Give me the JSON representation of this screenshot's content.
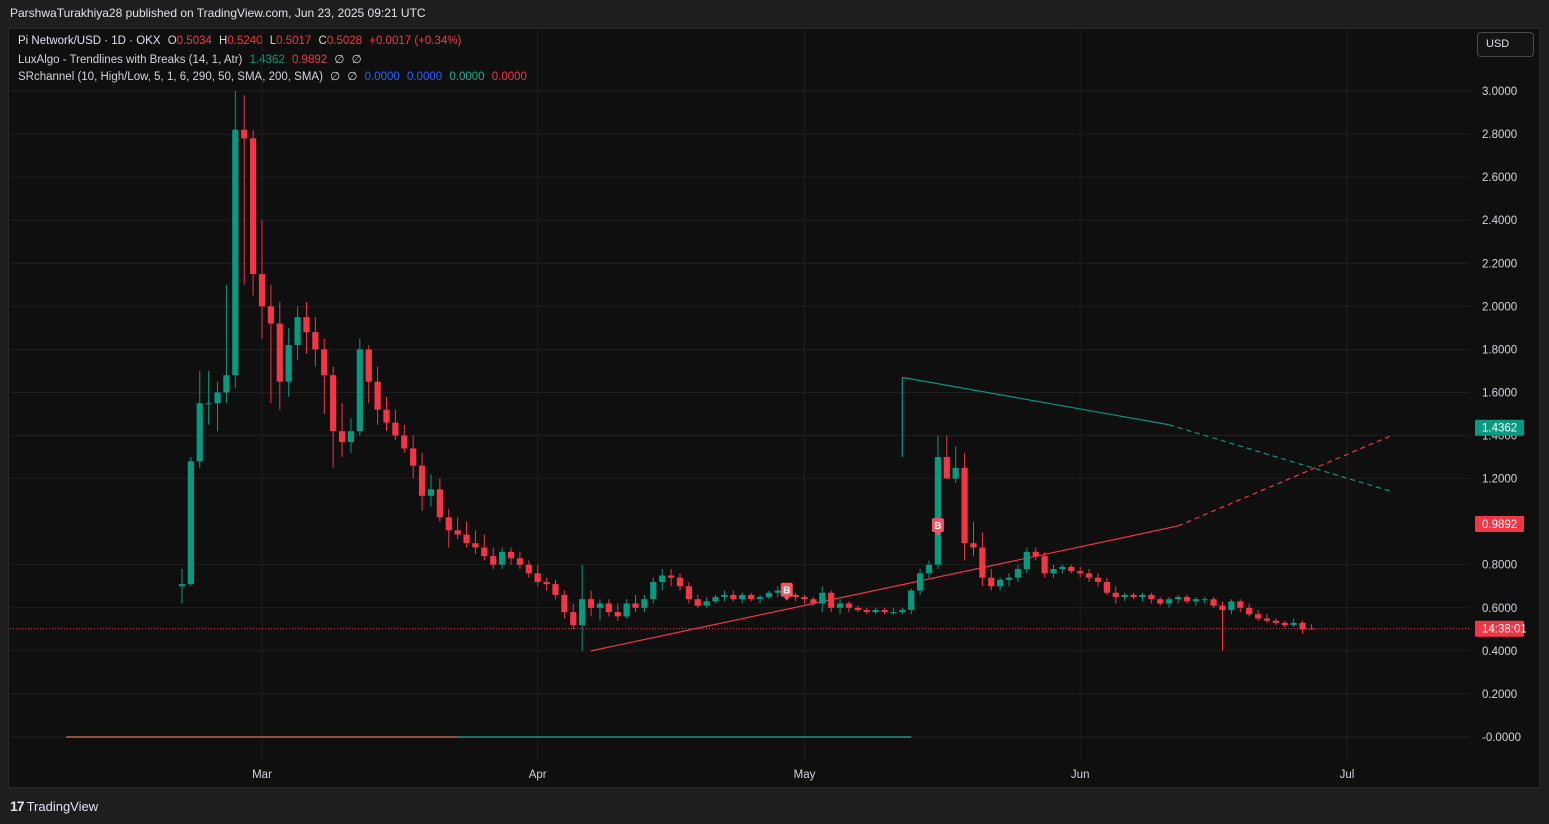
{
  "header": {
    "published": "ParshwaTurakhiya28 published on TradingView.com, Jun 23, 2025 09:21 UTC"
  },
  "legend": {
    "symbol": "Pi Network/USD · 1D · OKX",
    "o_label": "O",
    "o_value": "0.5034",
    "h_label": "H",
    "h_value": "0.5240",
    "l_label": "L",
    "l_value": "0.5017",
    "c_label": "C",
    "c_value": "0.5028",
    "change": "+0.0017 (+0.34%)",
    "ind1_name": "LuxAlgo - Trendlines with Breaks (14, 1, Atr)",
    "ind1_v1": "1.4362",
    "ind1_v2": "0.9892",
    "ind1_v3": "∅",
    "ind1_v4": "∅",
    "ind2_name": "SRchannel (10, High/Low, 5, 1, 6, 290, 50, SMA, 200, SMA)",
    "ind2_v1": "∅",
    "ind2_v2": "∅",
    "ind2_v3": "0.0000",
    "ind2_v4": "0.0000",
    "ind2_v5": "0.0000",
    "ind2_v6": "0.0000"
  },
  "toolbar": {
    "currency": "USD"
  },
  "footer": {
    "brand": "TradingView",
    "logo": "17"
  },
  "colors": {
    "up": "#089981",
    "down": "#f23645",
    "blue": "#2962ff",
    "green": "#22ab94"
  },
  "chart_data": {
    "type": "candlestick",
    "y_axis": {
      "ticks": [
        "3.0000",
        "2.8000",
        "2.6000",
        "2.4000",
        "2.2000",
        "2.0000",
        "1.8000",
        "1.6000",
        "1.4000",
        "1.2000",
        "0.8000",
        "0.6000",
        "0.4000",
        "0.2000",
        "-0.0000"
      ],
      "range": [
        -0.1,
        3.1
      ]
    },
    "x_axis": {
      "ticks": [
        {
          "label": "Mar",
          "date": "2025-03-01"
        },
        {
          "label": "Apr",
          "date": "2025-04-01"
        },
        {
          "label": "May",
          "date": "2025-05-01"
        },
        {
          "label": "Jun",
          "date": "2025-06-01"
        },
        {
          "label": "Jul",
          "date": "2025-07-01"
        }
      ]
    },
    "start_date": "2025-02-20",
    "candles": [
      [
        0.7,
        0.78,
        0.62,
        0.71
      ],
      [
        0.71,
        1.3,
        0.7,
        1.28
      ],
      [
        1.28,
        1.7,
        1.25,
        1.55
      ],
      [
        1.55,
        1.7,
        1.45,
        1.55
      ],
      [
        1.55,
        1.65,
        1.42,
        1.6
      ],
      [
        1.6,
        2.1,
        1.55,
        1.68
      ],
      [
        1.68,
        3.0,
        1.62,
        2.82
      ],
      [
        2.82,
        2.98,
        2.1,
        2.78
      ],
      [
        2.78,
        2.82,
        2.05,
        2.15
      ],
      [
        2.15,
        2.4,
        1.85,
        2.0
      ],
      [
        2.0,
        2.1,
        1.55,
        1.92
      ],
      [
        1.92,
        2.02,
        1.52,
        1.65
      ],
      [
        1.65,
        1.9,
        1.58,
        1.82
      ],
      [
        1.82,
        2.0,
        1.75,
        1.95
      ],
      [
        1.95,
        2.02,
        1.78,
        1.88
      ],
      [
        1.88,
        1.95,
        1.72,
        1.8
      ],
      [
        1.8,
        1.85,
        1.5,
        1.68
      ],
      [
        1.68,
        1.72,
        1.25,
        1.42
      ],
      [
        1.42,
        1.55,
        1.3,
        1.37
      ],
      [
        1.37,
        1.48,
        1.32,
        1.42
      ],
      [
        1.42,
        1.85,
        1.4,
        1.8
      ],
      [
        1.8,
        1.82,
        1.55,
        1.65
      ],
      [
        1.65,
        1.72,
        1.45,
        1.52
      ],
      [
        1.52,
        1.58,
        1.42,
        1.46
      ],
      [
        1.46,
        1.52,
        1.38,
        1.4
      ],
      [
        1.4,
        1.45,
        1.32,
        1.34
      ],
      [
        1.34,
        1.4,
        1.2,
        1.26
      ],
      [
        1.26,
        1.32,
        1.05,
        1.12
      ],
      [
        1.12,
        1.22,
        1.07,
        1.15
      ],
      [
        1.15,
        1.2,
        1.0,
        1.02
      ],
      [
        1.02,
        1.06,
        0.88,
        0.96
      ],
      [
        0.96,
        1.02,
        0.92,
        0.94
      ],
      [
        0.94,
        1.0,
        0.88,
        0.9
      ],
      [
        0.9,
        0.96,
        0.85,
        0.88
      ],
      [
        0.88,
        0.94,
        0.82,
        0.84
      ],
      [
        0.84,
        0.88,
        0.78,
        0.8
      ],
      [
        0.8,
        0.88,
        0.78,
        0.86
      ],
      [
        0.86,
        0.88,
        0.8,
        0.83
      ],
      [
        0.83,
        0.86,
        0.78,
        0.8
      ],
      [
        0.8,
        0.82,
        0.74,
        0.76
      ],
      [
        0.76,
        0.8,
        0.7,
        0.72
      ],
      [
        0.72,
        0.74,
        0.68,
        0.71
      ],
      [
        0.71,
        0.73,
        0.64,
        0.66
      ],
      [
        0.66,
        0.68,
        0.55,
        0.58
      ],
      [
        0.58,
        0.62,
        0.5,
        0.52
      ],
      [
        0.52,
        0.8,
        0.4,
        0.64
      ],
      [
        0.64,
        0.68,
        0.56,
        0.6
      ],
      [
        0.6,
        0.64,
        0.54,
        0.62
      ],
      [
        0.62,
        0.64,
        0.56,
        0.58
      ],
      [
        0.58,
        0.62,
        0.54,
        0.56
      ],
      [
        0.56,
        0.64,
        0.55,
        0.62
      ],
      [
        0.62,
        0.66,
        0.58,
        0.6
      ],
      [
        0.6,
        0.66,
        0.58,
        0.64
      ],
      [
        0.64,
        0.74,
        0.62,
        0.72
      ],
      [
        0.72,
        0.78,
        0.68,
        0.75
      ],
      [
        0.75,
        0.78,
        0.7,
        0.74
      ],
      [
        0.74,
        0.76,
        0.68,
        0.7
      ],
      [
        0.7,
        0.72,
        0.62,
        0.64
      ],
      [
        0.64,
        0.66,
        0.6,
        0.61
      ],
      [
        0.61,
        0.65,
        0.6,
        0.63
      ],
      [
        0.63,
        0.66,
        0.62,
        0.65
      ],
      [
        0.65,
        0.68,
        0.63,
        0.66
      ],
      [
        0.66,
        0.68,
        0.63,
        0.64
      ],
      [
        0.64,
        0.67,
        0.62,
        0.66
      ],
      [
        0.66,
        0.67,
        0.63,
        0.64
      ],
      [
        0.64,
        0.66,
        0.62,
        0.65
      ],
      [
        0.65,
        0.68,
        0.64,
        0.67
      ],
      [
        0.67,
        0.7,
        0.65,
        0.68
      ],
      [
        0.68,
        0.69,
        0.65,
        0.66
      ],
      [
        0.66,
        0.67,
        0.63,
        0.65
      ],
      [
        0.65,
        0.66,
        0.62,
        0.64
      ],
      [
        0.64,
        0.65,
        0.61,
        0.62
      ],
      [
        0.62,
        0.7,
        0.58,
        0.67
      ],
      [
        0.67,
        0.68,
        0.58,
        0.6
      ],
      [
        0.6,
        0.64,
        0.57,
        0.62
      ],
      [
        0.62,
        0.63,
        0.58,
        0.6
      ],
      [
        0.6,
        0.61,
        0.58,
        0.59
      ],
      [
        0.59,
        0.6,
        0.57,
        0.58
      ],
      [
        0.58,
        0.6,
        0.57,
        0.59
      ],
      [
        0.59,
        0.6,
        0.57,
        0.58
      ],
      [
        0.58,
        0.6,
        0.57,
        0.58
      ],
      [
        0.58,
        0.6,
        0.57,
        0.59
      ],
      [
        0.59,
        0.69,
        0.57,
        0.68
      ],
      [
        0.68,
        0.78,
        0.66,
        0.76
      ],
      [
        0.76,
        0.82,
        0.74,
        0.8
      ],
      [
        0.8,
        1.4,
        0.78,
        1.3
      ],
      [
        1.3,
        1.4,
        1.2,
        1.2
      ],
      [
        1.2,
        1.35,
        1.18,
        1.25
      ],
      [
        1.25,
        1.32,
        0.82,
        0.9
      ],
      [
        0.9,
        1.0,
        0.84,
        0.88
      ],
      [
        0.88,
        0.95,
        0.7,
        0.74
      ],
      [
        0.74,
        0.78,
        0.68,
        0.7
      ],
      [
        0.7,
        0.74,
        0.68,
        0.73
      ],
      [
        0.73,
        0.76,
        0.7,
        0.74
      ],
      [
        0.74,
        0.8,
        0.72,
        0.78
      ],
      [
        0.78,
        0.88,
        0.76,
        0.86
      ],
      [
        0.86,
        0.88,
        0.82,
        0.84
      ],
      [
        0.84,
        0.86,
        0.74,
        0.76
      ],
      [
        0.76,
        0.8,
        0.74,
        0.78
      ],
      [
        0.78,
        0.8,
        0.76,
        0.79
      ],
      [
        0.79,
        0.8,
        0.76,
        0.77
      ],
      [
        0.77,
        0.79,
        0.74,
        0.76
      ],
      [
        0.76,
        0.78,
        0.72,
        0.74
      ],
      [
        0.74,
        0.76,
        0.7,
        0.72
      ],
      [
        0.72,
        0.74,
        0.66,
        0.67
      ],
      [
        0.67,
        0.7,
        0.62,
        0.65
      ],
      [
        0.65,
        0.67,
        0.63,
        0.66
      ],
      [
        0.66,
        0.67,
        0.64,
        0.65
      ],
      [
        0.65,
        0.67,
        0.63,
        0.66
      ],
      [
        0.66,
        0.67,
        0.62,
        0.64
      ],
      [
        0.64,
        0.65,
        0.61,
        0.62
      ],
      [
        0.62,
        0.65,
        0.6,
        0.64
      ],
      [
        0.64,
        0.66,
        0.62,
        0.65
      ],
      [
        0.65,
        0.66,
        0.62,
        0.63
      ],
      [
        0.63,
        0.65,
        0.61,
        0.64
      ],
      [
        0.64,
        0.65,
        0.62,
        0.64
      ],
      [
        0.64,
        0.65,
        0.6,
        0.61
      ],
      [
        0.61,
        0.63,
        0.4,
        0.59
      ],
      [
        0.59,
        0.64,
        0.57,
        0.63
      ],
      [
        0.63,
        0.64,
        0.58,
        0.6
      ],
      [
        0.6,
        0.62,
        0.56,
        0.57
      ],
      [
        0.57,
        0.59,
        0.54,
        0.55
      ],
      [
        0.55,
        0.57,
        0.53,
        0.54
      ],
      [
        0.54,
        0.55,
        0.52,
        0.53
      ],
      [
        0.53,
        0.54,
        0.51,
        0.52
      ],
      [
        0.52,
        0.55,
        0.51,
        0.53
      ],
      [
        0.53,
        0.54,
        0.48,
        0.5
      ],
      [
        0.5034,
        0.524,
        0.5017,
        0.5028
      ]
    ],
    "trendlines": [
      {
        "color": "#f23645",
        "style": "solid",
        "from": {
          "date": "2025-04-07",
          "price": 0.4
        },
        "to": {
          "date": "2025-06-12",
          "price": 0.98
        }
      },
      {
        "color": "#f23645",
        "style": "dashed",
        "from": {
          "date": "2025-06-12",
          "price": 0.98
        },
        "to": {
          "date": "2025-07-06",
          "price": 1.4
        }
      },
      {
        "color": "#089981",
        "style": "solid",
        "from": {
          "date": "2025-05-12",
          "price": 1.67
        },
        "to": {
          "date": "2025-06-11",
          "price": 1.45
        }
      },
      {
        "color": "#089981",
        "style": "dashed",
        "from": {
          "date": "2025-06-11",
          "price": 1.45
        },
        "to": {
          "date": "2025-07-06",
          "price": 1.14
        }
      }
    ],
    "break_labels": [
      {
        "text": "B",
        "date": "2025-04-29",
        "price": 0.67
      },
      {
        "text": "B",
        "date": "2025-05-16",
        "price": 0.97
      }
    ],
    "current_price_line": {
      "price": 0.5028,
      "color": "#f23645",
      "style": "dotted"
    },
    "sr_line": {
      "price": 0.0
    },
    "price_tags": [
      {
        "text": "1.4362",
        "price": 1.4362,
        "color": "#089981"
      },
      {
        "text": "0.9892",
        "price": 0.9892,
        "color": "#f23645"
      },
      {
        "text": "14:38:01",
        "price": 0.5028,
        "color": "#f23645"
      }
    ]
  }
}
